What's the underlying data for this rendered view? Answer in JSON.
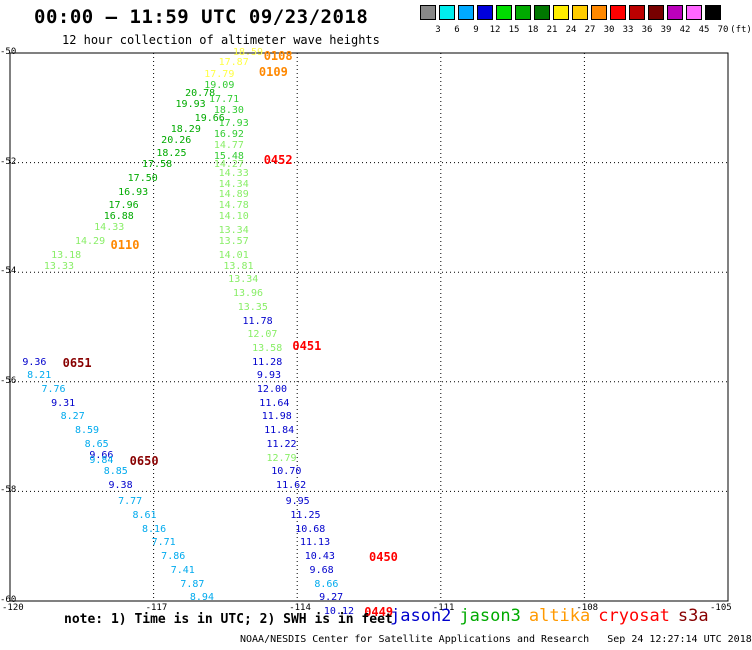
{
  "title": "00:00 – 11:59 UTC 09/23/2018",
  "subtitle": "12 hour collection of altimeter wave heights",
  "color_scale": {
    "colors": [
      "#888888",
      "#00eeee",
      "#00aaff",
      "#0000dd",
      "#00dd00",
      "#00aa00",
      "#007700",
      "#ffee00",
      "#ffcc00",
      "#ff8800",
      "#ff0000",
      "#bb0000",
      "#770000",
      "#bb00bb",
      "#ff66ff",
      "#000000"
    ],
    "labels": [
      "3",
      "6",
      "9",
      "12",
      "15",
      "18",
      "21",
      "24",
      "27",
      "30",
      "33",
      "36",
      "39",
      "42",
      "45",
      "70"
    ],
    "unit": "(ft)"
  },
  "axes": {
    "x_ticks": [
      "-120",
      "-117",
      "-114",
      "-111",
      "-108",
      "-105"
    ],
    "y_ticks": [
      "-50",
      "-52",
      "-54",
      "-56",
      "-58",
      "-60"
    ]
  },
  "chart_data": {
    "type": "scatter",
    "x_range": [
      -120,
      -105
    ],
    "y_range": [
      -60,
      -50
    ],
    "points": [
      {
        "t": "18.59",
        "x": -115.3,
        "y": -50.0,
        "c": "#ffff44"
      },
      {
        "t": "17.87",
        "x": -115.6,
        "y": -50.18,
        "c": "#ffff44"
      },
      {
        "t": "17.79",
        "x": -115.9,
        "y": -50.4,
        "c": "#ffff44"
      },
      {
        "t": "19.09",
        "x": -115.9,
        "y": -50.6,
        "c": "#33cc33"
      },
      {
        "t": "20.78",
        "x": -116.3,
        "y": -50.75,
        "c": "#00aa00"
      },
      {
        "t": "17.71",
        "x": -115.8,
        "y": -50.85,
        "c": "#33cc33"
      },
      {
        "t": "19.93",
        "x": -116.5,
        "y": -50.95,
        "c": "#00aa00"
      },
      {
        "t": "18.30",
        "x": -115.7,
        "y": -51.05,
        "c": "#33cc33"
      },
      {
        "t": "19.66",
        "x": -116.1,
        "y": -51.2,
        "c": "#00aa00"
      },
      {
        "t": "17.93",
        "x": -115.6,
        "y": -51.3,
        "c": "#33cc33"
      },
      {
        "t": "18.29",
        "x": -116.6,
        "y": -51.4,
        "c": "#00aa00"
      },
      {
        "t": "16.92",
        "x": -115.7,
        "y": -51.5,
        "c": "#33cc33"
      },
      {
        "t": "20.26",
        "x": -116.8,
        "y": -51.6,
        "c": "#00aa00"
      },
      {
        "t": "14.77",
        "x": -115.7,
        "y": -51.7,
        "c": "#88ee66"
      },
      {
        "t": "18.25",
        "x": -116.9,
        "y": -51.85,
        "c": "#00aa00"
      },
      {
        "t": "15.48",
        "x": -115.7,
        "y": -51.9,
        "c": "#33cc33"
      },
      {
        "t": "17.58",
        "x": -117.2,
        "y": -52.05,
        "c": "#00aa00"
      },
      {
        "t": "14.27",
        "x": -115.7,
        "y": -52.05,
        "c": "#88ee66"
      },
      {
        "t": "14.33",
        "x": -115.6,
        "y": -52.2,
        "c": "#88ee66"
      },
      {
        "t": "17.50",
        "x": -117.5,
        "y": -52.3,
        "c": "#00aa00"
      },
      {
        "t": "14.34",
        "x": -115.6,
        "y": -52.4,
        "c": "#88ee66"
      },
      {
        "t": "16.93",
        "x": -117.7,
        "y": -52.55,
        "c": "#00aa00"
      },
      {
        "t": "14.89",
        "x": -115.6,
        "y": -52.6,
        "c": "#88ee66"
      },
      {
        "t": "17.96",
        "x": -117.9,
        "y": -52.8,
        "c": "#00aa00"
      },
      {
        "t": "14.78",
        "x": -115.6,
        "y": -52.8,
        "c": "#88ee66"
      },
      {
        "t": "16.88",
        "x": -118.0,
        "y": -53.0,
        "c": "#00aa00"
      },
      {
        "t": "14.10",
        "x": -115.6,
        "y": -53.0,
        "c": "#88ee66"
      },
      {
        "t": "14.33",
        "x": -118.2,
        "y": -53.2,
        "c": "#88ee66"
      },
      {
        "t": "13.34",
        "x": -115.6,
        "y": -53.25,
        "c": "#88ee66"
      },
      {
        "t": "14.29",
        "x": -118.6,
        "y": -53.45,
        "c": "#88ee66"
      },
      {
        "t": "13.57",
        "x": -115.6,
        "y": -53.45,
        "c": "#88ee66"
      },
      {
        "t": "13.18",
        "x": -119.1,
        "y": -53.7,
        "c": "#88ee66"
      },
      {
        "t": "14.01",
        "x": -115.6,
        "y": -53.7,
        "c": "#88ee66"
      },
      {
        "t": "13.33",
        "x": -119.25,
        "y": -53.9,
        "c": "#88ee66"
      },
      {
        "t": "13.81",
        "x": -115.5,
        "y": -53.9,
        "c": "#88ee66"
      },
      {
        "t": "13.34",
        "x": -115.4,
        "y": -54.15,
        "c": "#88ee66"
      },
      {
        "t": "13.96",
        "x": -115.3,
        "y": -54.4,
        "c": "#88ee66"
      },
      {
        "t": "13.35",
        "x": -115.2,
        "y": -54.65,
        "c": "#88ee66"
      },
      {
        "t": "11.78",
        "x": -115.1,
        "y": -54.9,
        "c": "#0000cc"
      },
      {
        "t": "12.07",
        "x": -115.0,
        "y": -55.15,
        "c": "#88ee66"
      },
      {
        "t": "13.58",
        "x": -114.9,
        "y": -55.4,
        "c": "#88ee66"
      },
      {
        "t": "11.28",
        "x": -114.9,
        "y": -55.65,
        "c": "#0000cc"
      },
      {
        "t": "9.36",
        "x": -119.7,
        "y": -55.65,
        "c": "#0000cc"
      },
      {
        "t": "8.21",
        "x": -119.6,
        "y": -55.9,
        "c": "#00aaee"
      },
      {
        "t": "9.93",
        "x": -114.8,
        "y": -55.9,
        "c": "#0000cc"
      },
      {
        "t": "7.76",
        "x": -119.3,
        "y": -56.15,
        "c": "#00aaee"
      },
      {
        "t": "12.00",
        "x": -114.8,
        "y": -56.15,
        "c": "#0000cc"
      },
      {
        "t": "9.31",
        "x": -119.1,
        "y": -56.4,
        "c": "#0000cc"
      },
      {
        "t": "11.64",
        "x": -114.75,
        "y": -56.4,
        "c": "#0000cc"
      },
      {
        "t": "8.27",
        "x": -118.9,
        "y": -56.65,
        "c": "#00aaee"
      },
      {
        "t": "11.98",
        "x": -114.7,
        "y": -56.65,
        "c": "#0000cc"
      },
      {
        "t": "8.59",
        "x": -118.6,
        "y": -56.9,
        "c": "#00aaee"
      },
      {
        "t": "11.84",
        "x": -114.65,
        "y": -56.9,
        "c": "#0000cc"
      },
      {
        "t": "8.65",
        "x": -118.4,
        "y": -57.15,
        "c": "#00aaee"
      },
      {
        "t": "11.22",
        "x": -114.6,
        "y": -57.15,
        "c": "#0000cc"
      },
      {
        "t": "9.66",
        "x": -118.3,
        "y": -57.35,
        "c": "#0000cc"
      },
      {
        "t": "9.84",
        "x": -118.3,
        "y": -57.45,
        "c": "#00aaee"
      },
      {
        "t": "12.79",
        "x": -114.6,
        "y": -57.4,
        "c": "#88ee66"
      },
      {
        "t": "8.85",
        "x": -118.0,
        "y": -57.65,
        "c": "#00aaee"
      },
      {
        "t": "10.70",
        "x": -114.5,
        "y": -57.65,
        "c": "#0000cc"
      },
      {
        "t": "9.38",
        "x": -117.9,
        "y": -57.9,
        "c": "#0000cc"
      },
      {
        "t": "11.62",
        "x": -114.4,
        "y": -57.9,
        "c": "#0000cc"
      },
      {
        "t": "7.77",
        "x": -117.7,
        "y": -58.2,
        "c": "#00aaee"
      },
      {
        "t": "9.95",
        "x": -114.2,
        "y": -58.2,
        "c": "#0000cc"
      },
      {
        "t": "8.61",
        "x": -117.4,
        "y": -58.45,
        "c": "#00aaee"
      },
      {
        "t": "11.25",
        "x": -114.1,
        "y": -58.45,
        "c": "#0000cc"
      },
      {
        "t": "8.16",
        "x": -117.2,
        "y": -58.7,
        "c": "#00aaee"
      },
      {
        "t": "10.68",
        "x": -114.0,
        "y": -58.7,
        "c": "#0000cc"
      },
      {
        "t": "7.71",
        "x": -117.0,
        "y": -58.95,
        "c": "#00aaee"
      },
      {
        "t": "11.13",
        "x": -113.9,
        "y": -58.95,
        "c": "#0000cc"
      },
      {
        "t": "7.86",
        "x": -116.8,
        "y": -59.2,
        "c": "#00aaee"
      },
      {
        "t": "10.43",
        "x": -113.8,
        "y": -59.2,
        "c": "#0000cc"
      },
      {
        "t": "7.41",
        "x": -116.6,
        "y": -59.45,
        "c": "#00aaee"
      },
      {
        "t": "9.68",
        "x": -113.7,
        "y": -59.45,
        "c": "#0000cc"
      },
      {
        "t": "7.87",
        "x": -116.4,
        "y": -59.7,
        "c": "#00aaee"
      },
      {
        "t": "8.66",
        "x": -113.6,
        "y": -59.7,
        "c": "#00aaee"
      },
      {
        "t": "8.94",
        "x": -116.2,
        "y": -59.95,
        "c": "#00aaee"
      },
      {
        "t": "9.27",
        "x": -113.5,
        "y": -59.95,
        "c": "#0000cc"
      },
      {
        "t": "10.12",
        "x": -113.4,
        "y": -60.2,
        "c": "#0000cc"
      }
    ],
    "times": [
      {
        "t": "0108",
        "x": -114.7,
        "y": -50.05,
        "c": "#ff8800"
      },
      {
        "t": "0109",
        "x": -114.8,
        "y": -50.35,
        "c": "#ff8800"
      },
      {
        "t": "0452",
        "x": -114.7,
        "y": -51.95,
        "c": "#ff0000"
      },
      {
        "t": "0110",
        "x": -117.9,
        "y": -53.5,
        "c": "#ff8800"
      },
      {
        "t": "0451",
        "x": -114.1,
        "y": -55.35,
        "c": "#ff0000"
      },
      {
        "t": "0651",
        "x": -118.9,
        "y": -55.65,
        "c": "#880000"
      },
      {
        "t": "0650",
        "x": -117.5,
        "y": -57.45,
        "c": "#880000"
      },
      {
        "t": "0450",
        "x": -112.5,
        "y": -59.2,
        "c": "#ff0000"
      },
      {
        "t": "0449",
        "x": -112.6,
        "y": -60.2,
        "c": "#ff0000"
      }
    ]
  },
  "footnote": "note: 1) Time is in UTC; 2) SWH is in feet",
  "legend": [
    {
      "name": "jason2",
      "color": "#0000cc"
    },
    {
      "name": "jason3",
      "color": "#00aa00"
    },
    {
      "name": "altika",
      "color": "#ff9900"
    },
    {
      "name": "cryosat",
      "color": "#ff0000"
    },
    {
      "name": "s3a",
      "color": "#880000"
    }
  ],
  "credit": "NOAA/NESDIS Center for Satellite Applications and Research   Sep 24 12:27:14 UTC 2018"
}
